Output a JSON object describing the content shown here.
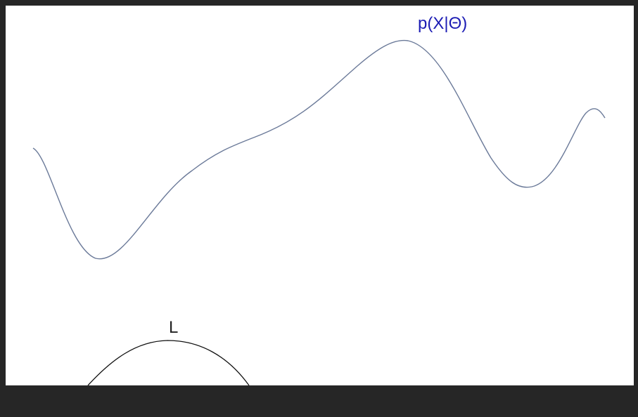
{
  "diagram": {
    "likelihood_curve": {
      "label": "p(X|Θ)",
      "label_color": "#1c1cb4",
      "stroke_color": "#6b7a99"
    },
    "lower_bound_curve": {
      "label": "L",
      "label_color": "#222222",
      "stroke_color": "#111111"
    }
  },
  "colors": {
    "frame_background": "#262626",
    "canvas_background": "#ffffff"
  }
}
